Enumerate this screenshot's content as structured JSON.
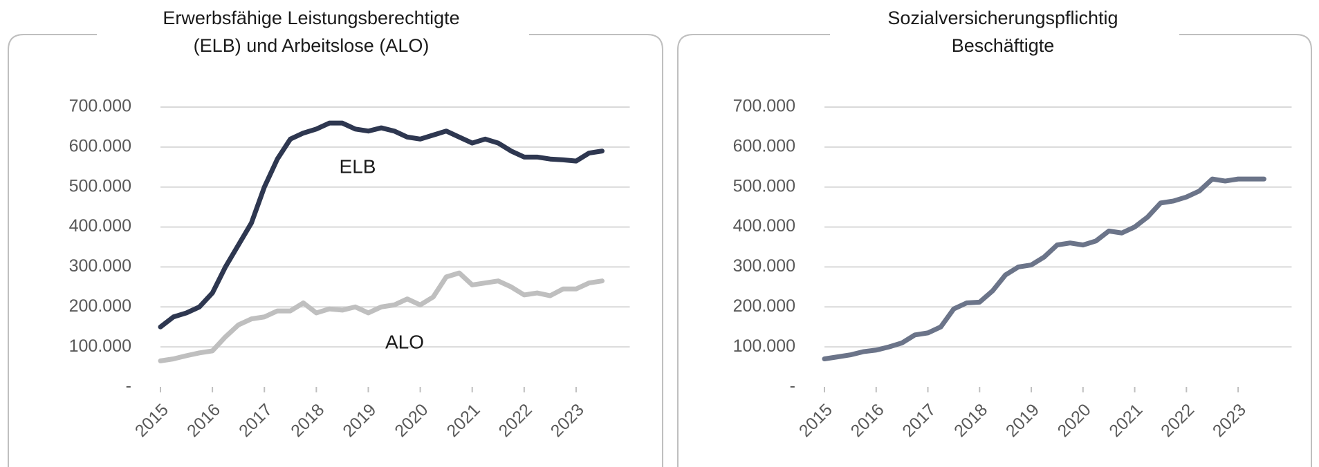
{
  "chart_data": [
    {
      "type": "line",
      "title": [
        "Erwerbsfähige Leistungsberechtigte",
        "(ELB) und Arbeitslose (ALO)"
      ],
      "categories": [
        "2015",
        null,
        null,
        null,
        "2016",
        null,
        null,
        null,
        "2017",
        null,
        null,
        null,
        "2018",
        null,
        null,
        null,
        "2019",
        null,
        null,
        null,
        "2020",
        null,
        null,
        null,
        "2021",
        null,
        null,
        null,
        "2022",
        null,
        null,
        null,
        "2023",
        null,
        null
      ],
      "series": [
        {
          "name": "ELB",
          "color": "#2e3750",
          "values": [
            150000,
            175000,
            185000,
            200000,
            235000,
            300000,
            355000,
            410000,
            500000,
            570000,
            620000,
            635000,
            645000,
            660000,
            660000,
            645000,
            640000,
            648000,
            640000,
            625000,
            620000,
            630000,
            640000,
            625000,
            610000,
            620000,
            610000,
            590000,
            575000,
            575000,
            570000,
            568000,
            565000,
            585000,
            590000
          ]
        },
        {
          "name": "ALO",
          "color": "#bfbfbf",
          "values": [
            65000,
            70000,
            78000,
            85000,
            90000,
            125000,
            155000,
            170000,
            175000,
            190000,
            190000,
            210000,
            185000,
            195000,
            192000,
            200000,
            185000,
            200000,
            205000,
            220000,
            205000,
            225000,
            275000,
            285000,
            255000,
            260000,
            265000,
            250000,
            230000,
            235000,
            228000,
            245000,
            245000,
            260000,
            265000
          ]
        }
      ],
      "ylim": [
        0,
        700000
      ],
      "yticks": [
        {
          "value": 0,
          "label": "-"
        },
        {
          "value": 100000,
          "label": "100.000"
        },
        {
          "value": 200000,
          "label": "200.000"
        },
        {
          "value": 300000,
          "label": "300.000"
        },
        {
          "value": 400000,
          "label": "400.000"
        },
        {
          "value": 500000,
          "label": "500.000"
        },
        {
          "value": 600000,
          "label": "600.000"
        },
        {
          "value": 700000,
          "label": "700.000"
        }
      ],
      "grid": true
    },
    {
      "type": "line",
      "title": [
        "Sozialversicherungspflichtig",
        "Beschäftigte"
      ],
      "categories": [
        "2015",
        null,
        null,
        null,
        "2016",
        null,
        null,
        null,
        "2017",
        null,
        null,
        null,
        "2018",
        null,
        null,
        null,
        "2019",
        null,
        null,
        null,
        "2020",
        null,
        null,
        null,
        "2021",
        null,
        null,
        null,
        "2022",
        null,
        null,
        null,
        "2023",
        null,
        null
      ],
      "series": [
        {
          "color": "#6b7489",
          "values": [
            70000,
            75000,
            80000,
            88000,
            92000,
            100000,
            110000,
            130000,
            135000,
            150000,
            195000,
            210000,
            212000,
            240000,
            280000,
            300000,
            305000,
            325000,
            355000,
            360000,
            355000,
            365000,
            390000,
            385000,
            400000,
            425000,
            460000,
            465000,
            475000,
            490000,
            520000,
            515000,
            520000,
            520000,
            520000
          ]
        }
      ],
      "ylim": [
        0,
        700000
      ],
      "yticks": [
        {
          "value": 0,
          "label": "-"
        },
        {
          "value": 100000,
          "label": "100.000"
        },
        {
          "value": 200000,
          "label": "200.000"
        },
        {
          "value": 300000,
          "label": "300.000"
        },
        {
          "value": 400000,
          "label": "400.000"
        },
        {
          "value": 500000,
          "label": "500.000"
        },
        {
          "value": 600000,
          "label": "600.000"
        },
        {
          "value": 700000,
          "label": "700.000"
        }
      ],
      "grid": true
    }
  ]
}
